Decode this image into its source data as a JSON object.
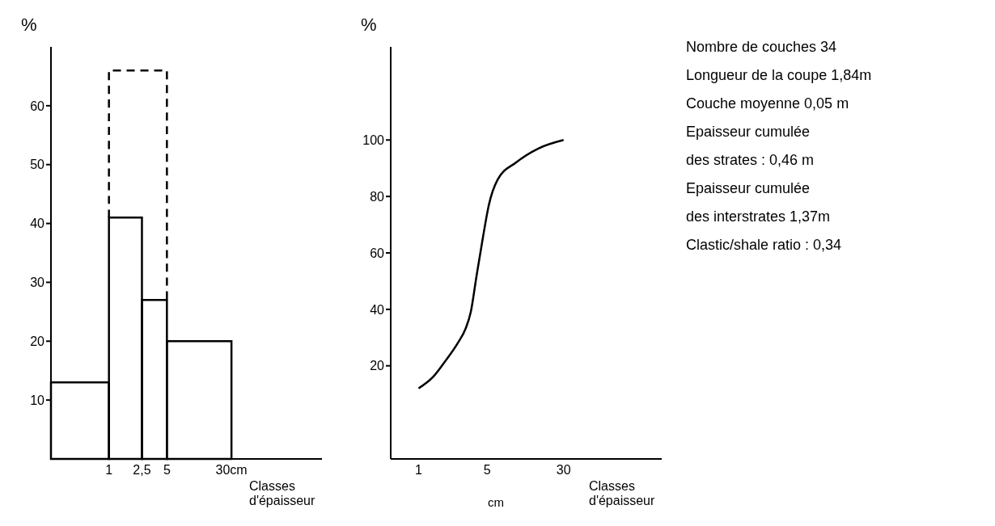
{
  "chart_data": [
    {
      "type": "histogram",
      "ylabel": "%",
      "xlabel": "Classes d'épaisseur",
      "log": "x",
      "bins": [
        0.2,
        1,
        2.5,
        5,
        30
      ],
      "values": [
        13,
        41,
        27,
        20
      ],
      "color": "#000000",
      "series": [
        {
          "type": "line",
          "x": [
            1,
            1,
            5,
            5
          ],
          "values": [
            41,
            66,
            66,
            27
          ],
          "color": "#000000",
          "line_style": "dashed"
        }
      ],
      "xlim": [
        0.2,
        370
      ],
      "xticks": [
        1,
        {
          "value": 2.5,
          "label": "2,5"
        },
        5,
        {
          "value": 30,
          "label": "30cm"
        }
      ],
      "ylim": [
        0,
        70
      ],
      "yticks": [
        10,
        20,
        30,
        40,
        50,
        60
      ]
    },
    {
      "type": "line",
      "ylabel": "%",
      "xlabel": "Classes d'épaisseur",
      "annotations": [
        "cm"
      ],
      "log": "x",
      "series": [
        {
          "x": [
            1,
            1.4,
            1.9,
            2.5,
            3.0,
            3.4,
            3.9,
            4.5,
            5.2,
            6.4,
            9.8,
            16.6,
            30
          ],
          "values": [
            12,
            16,
            22,
            28,
            33,
            39,
            52,
            65,
            77,
            86,
            92,
            97,
            100
          ],
          "color": "#000000"
        }
      ],
      "xlim": [
        0.52,
        300
      ],
      "xticks": [
        1,
        5,
        30
      ],
      "ylim": [
        -13,
        133
      ],
      "yticks": [
        20,
        40,
        60,
        80,
        100
      ]
    },
    {
      "type": "other",
      "annotations": [
        "Nombre de couches 34",
        "Longueur de la coupe 1,84m",
        "Couche moyenne 0,05 m",
        "Epaisseur cumulée",
        "des strates : 0,46 m",
        "Epaisseur cumulée",
        "des interstrates 1,37m",
        "Clastic/shale ratio : 0,34"
      ]
    }
  ]
}
